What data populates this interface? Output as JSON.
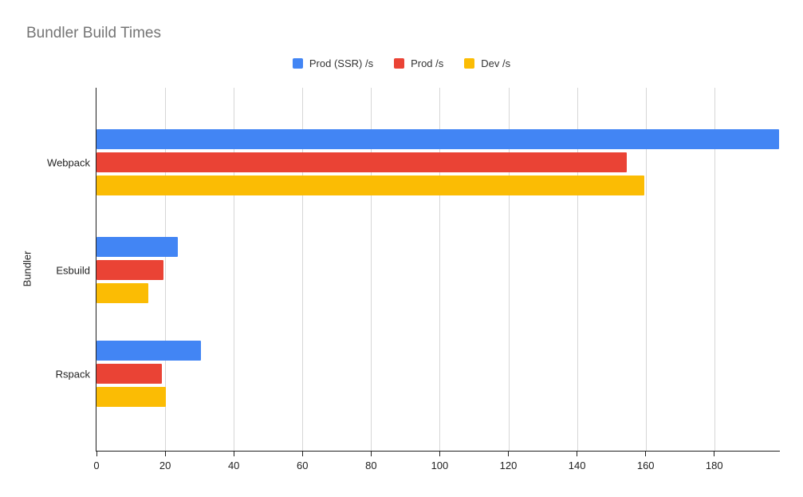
{
  "chart_data": {
    "type": "bar",
    "orientation": "horizontal",
    "title": "Bundler Build Times",
    "xlabel": "",
    "ylabel": "Bundler",
    "categories": [
      "Webpack",
      "Esbuild",
      "Rspack"
    ],
    "series": [
      {
        "name": "Prod (SSR) /s",
        "color": "#4285F4",
        "values": [
          198.9,
          23.6,
          30.5
        ]
      },
      {
        "name": "Prod /s",
        "color": "#EA4335",
        "values": [
          154.4,
          19.4,
          19.1
        ]
      },
      {
        "name": "Dev /s",
        "color": "#FBBC04",
        "values": [
          159.5,
          15.2,
          20.1
        ]
      }
    ],
    "xlim": [
      0,
      199.1
    ],
    "x_ticks": [
      0,
      20,
      40,
      60,
      80,
      100,
      120,
      140,
      160,
      180
    ],
    "grid": true,
    "legend_position": "top-center",
    "colors": {
      "title_text": "#757575",
      "axis_line": "#212121",
      "gridline": "#d6d6d6",
      "label_text": "#222222"
    }
  }
}
